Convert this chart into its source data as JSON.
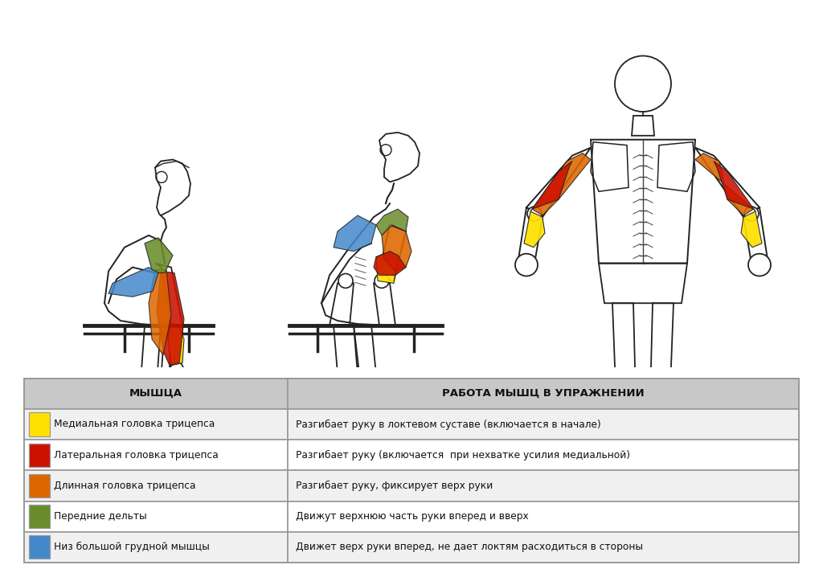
{
  "table_header_col1": "МЫШЦА",
  "table_header_col2": "РАБОТА МЫШЦ В УПРАЖНЕНИИ",
  "rows": [
    {
      "color": "#FFE000",
      "muscle": "Медиальная головка трицепса",
      "action": "Разгибает руку в локтевом суставе (включается в начале)"
    },
    {
      "color": "#CC1100",
      "muscle": "Латеральная головка трицепса",
      "action": "Разгибает руку (включается  при нехватке усилия медиальной)"
    },
    {
      "color": "#DD6600",
      "muscle": "Длинная головка трицепса",
      "action": "Разгибает руку, фиксирует верх руки"
    },
    {
      "color": "#6B8C2A",
      "muscle": "Передние дельты",
      "action": "Движут верхнюю часть руки вперед и вверх"
    },
    {
      "color": "#4488CC",
      "muscle": "Низ большой грудной мышцы",
      "action": "Движет верх руки вперед, не дает локтям расходиться в стороны"
    }
  ],
  "background_color": "#FFFFFF",
  "table_header_bg": "#C8C8C8",
  "table_row_bg_light": "#F0F0F0",
  "table_row_bg_white": "#FFFFFF",
  "table_border_color": "#999999",
  "fig_width": 10.24,
  "fig_height": 7.08,
  "dpi": 100
}
